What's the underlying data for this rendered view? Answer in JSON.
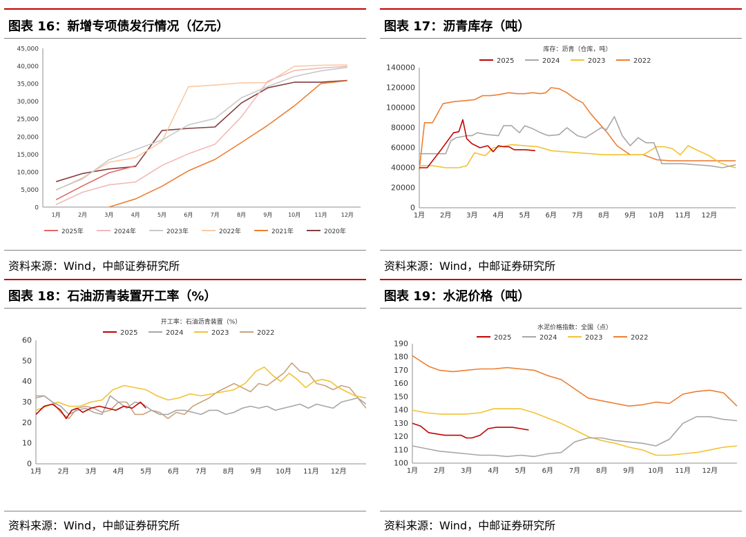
{
  "source_text": "资料来源：Wind，中邮证券研究所",
  "colors": {
    "rule_red": "#c00000"
  },
  "panels": [
    {
      "title": "图表 16：新增专项债发行情况（亿元）"
    },
    {
      "title": "图表 17：沥青库存（吨）"
    },
    {
      "title": "图表 18：石油沥青装置开工率（%）"
    },
    {
      "title": "图表 19：水泥价格（吨）"
    }
  ],
  "chart_data": [
    {
      "type": "line",
      "title": "",
      "categories": [
        "1月",
        "2月",
        "3月",
        "4月",
        "5月",
        "6月",
        "7月",
        "8月",
        "9月",
        "10月",
        "11月",
        "12月"
      ],
      "ylim": [
        0,
        45000
      ],
      "yticks": [
        "0",
        "5,000",
        "10,000",
        "15,000",
        "20,000",
        "25,000",
        "30,000",
        "35,000",
        "40,000",
        "45,000"
      ],
      "legend_position": "bottom",
      "series": [
        {
          "name": "2025年",
          "color": "#e06666",
          "values": [
            2100,
            6000,
            9700,
            11700,
            null,
            null,
            null,
            null,
            null,
            null,
            null,
            null
          ]
        },
        {
          "name": "2024年",
          "color": "#f2b8b8",
          "values": [
            700,
            4200,
            6300,
            7100,
            11800,
            15100,
            17800,
            25600,
            35700,
            38700,
            39400,
            39900
          ]
        },
        {
          "name": "2023年",
          "color": "#c8c8c8",
          "values": [
            4900,
            8000,
            13400,
            16300,
            19000,
            23300,
            25100,
            31000,
            34200,
            37000,
            38600,
            39600
          ]
        },
        {
          "name": "2022年",
          "color": "#f9c9a3",
          "values": [
            4800,
            8300,
            12700,
            14000,
            18600,
            34100,
            34600,
            35200,
            35300,
            39900,
            40200,
            40300
          ]
        },
        {
          "name": "2021年",
          "color": "#ed7d31",
          "values": [
            null,
            null,
            0,
            2300,
            5900,
            10300,
            13500,
            18300,
            23200,
            28700,
            35000,
            35800
          ]
        },
        {
          "name": "2020年",
          "color": "#843c3c",
          "values": [
            7200,
            9500,
            10800,
            11500,
            21700,
            22300,
            22700,
            29500,
            33800,
            35400,
            35400,
            35900
          ]
        }
      ]
    },
    {
      "type": "line",
      "title": "库存：沥青（仓库，吨）",
      "categories": [
        "1月",
        "2月",
        "3月",
        "4月",
        "5月",
        "6月",
        "7月",
        "8月",
        "9月",
        "10月",
        "11月",
        "12月"
      ],
      "ylim": [
        0,
        140000
      ],
      "yticks": [
        "0",
        "20000",
        "40000",
        "60000",
        "80000",
        "100000",
        "120000",
        "140000"
      ],
      "legend_position": "top",
      "series": [
        {
          "name": "2025",
          "color": "#c00000",
          "x": [
            0,
            0.3,
            0.8,
            1.3,
            1.5,
            1.65,
            1.8,
            2,
            2.3,
            2.6,
            2.8,
            3,
            3.2,
            3.4,
            3.6,
            4,
            4.4
          ],
          "values": [
            40000,
            40000,
            57000,
            75000,
            76000,
            88000,
            69000,
            64000,
            60000,
            62000,
            56000,
            62000,
            61000,
            61000,
            58000,
            58000,
            57000
          ]
        },
        {
          "name": "2024",
          "color": "#a6a6a6",
          "x": [
            0,
            0.5,
            1,
            1.2,
            1.4,
            1.8,
            2,
            2.2,
            2.6,
            3,
            3.2,
            3.5,
            3.8,
            4,
            4.3,
            4.6,
            4.9,
            5.3,
            5.6,
            6,
            6.3,
            6.6,
            6.9,
            7.1,
            7.4,
            7.7,
            8,
            8.3,
            8.6,
            8.9,
            9.2,
            9.6,
            10,
            10.5,
            11,
            11.5,
            12
          ],
          "values": [
            54000,
            54000,
            54000,
            67000,
            70000,
            72000,
            72000,
            75000,
            73000,
            72000,
            82000,
            82000,
            75000,
            82000,
            79000,
            75000,
            72000,
            73000,
            80000,
            72000,
            70000,
            75000,
            80000,
            78000,
            91000,
            72000,
            62000,
            70000,
            65000,
            65000,
            44000,
            44000,
            44000,
            43000,
            42000,
            40000,
            43000
          ]
        },
        {
          "name": "2023",
          "color": "#f1c232",
          "x": [
            0,
            0.5,
            1,
            1.5,
            1.8,
            2.1,
            2.5,
            2.8,
            3.1,
            3.5,
            4,
            4.5,
            5,
            5.5,
            6,
            6.5,
            7,
            7.5,
            8,
            8.5,
            9,
            9.3,
            9.6,
            9.9,
            10.2,
            10.5,
            11,
            11.4,
            11.7,
            12
          ],
          "values": [
            42000,
            42000,
            40000,
            40000,
            42000,
            55000,
            52000,
            60000,
            61000,
            63000,
            62000,
            61000,
            57000,
            56000,
            55000,
            54000,
            53000,
            53000,
            53000,
            53000,
            61000,
            61000,
            59000,
            53000,
            62000,
            58000,
            52000,
            45000,
            42000,
            40000
          ]
        },
        {
          "name": "2022",
          "color": "#ed7d31",
          "x": [
            0,
            0.2,
            0.5,
            0.9,
            1.3,
            1.7,
            2.1,
            2.4,
            2.7,
            3,
            3.4,
            3.7,
            4,
            4.3,
            4.6,
            4.8,
            5,
            5.3,
            5.6,
            5.9,
            6.2,
            6.5,
            6.8,
            7.1,
            7.5,
            8,
            8.5,
            9,
            9.5,
            10,
            10.5,
            11,
            11.5,
            12
          ],
          "values": [
            38000,
            85000,
            85000,
            104000,
            106000,
            107000,
            108000,
            112000,
            112000,
            113000,
            115000,
            114000,
            114000,
            115000,
            114000,
            115000,
            120000,
            119000,
            115000,
            109000,
            105000,
            94000,
            85000,
            76000,
            62000,
            53000,
            53000,
            48000,
            47000,
            47000,
            47000,
            47000,
            47000,
            47000
          ]
        }
      ]
    },
    {
      "type": "line",
      "title": "开工率：石油沥青装置（%）",
      "categories": [
        "1月",
        "2月",
        "3月",
        "4月",
        "5月",
        "6月",
        "7月",
        "8月",
        "9月",
        "10月",
        "11月",
        "12月"
      ],
      "ylim": [
        0,
        60
      ],
      "yticks": [
        "0",
        "10",
        "20",
        "30",
        "40",
        "50",
        "60"
      ],
      "legend_position": "top",
      "series": [
        {
          "name": "2025",
          "color": "#c00000",
          "x": [
            0,
            0.3,
            0.6,
            0.9,
            1.1,
            1.3,
            1.5,
            1.7,
            2,
            2.3,
            2.6,
            2.9,
            3.2,
            3.5,
            3.8,
            4
          ],
          "values": [
            24,
            28,
            29,
            26,
            22,
            26,
            27,
            25,
            27,
            28,
            27,
            26,
            28,
            27,
            30,
            27
          ]
        },
        {
          "name": "2024",
          "color": "#a6a6a6",
          "x": [
            0,
            0.3,
            0.6,
            0.9,
            1.2,
            1.5,
            1.8,
            2.1,
            2.4,
            2.7,
            3,
            3.3,
            3.6,
            3.9,
            4.2,
            4.5,
            4.8,
            5.1,
            5.4,
            5.7,
            6,
            6.3,
            6.6,
            6.9,
            7.2,
            7.5,
            7.8,
            8.1,
            8.4,
            8.7,
            9,
            9.3,
            9.6,
            9.9,
            10.2,
            10.5,
            10.8,
            11.1,
            11.4,
            11.7,
            12
          ],
          "values": [
            32,
            33,
            30,
            28,
            24,
            26,
            27,
            25,
            24,
            33,
            30,
            27,
            30,
            29,
            26,
            24,
            24,
            26,
            26,
            25,
            24,
            26,
            26,
            24,
            25,
            27,
            28,
            27,
            28,
            26,
            27,
            28,
            29,
            27,
            29,
            28,
            27,
            30,
            31,
            32,
            29
          ]
        },
        {
          "name": "2023",
          "color": "#f1c232",
          "x": [
            0,
            0.4,
            0.8,
            1.2,
            1.6,
            2,
            2.4,
            2.8,
            3.2,
            3.6,
            4,
            4.4,
            4.8,
            5.2,
            5.6,
            6,
            6.4,
            6.8,
            7.2,
            7.6,
            8,
            8.3,
            8.6,
            8.9,
            9.2,
            9.5,
            9.8,
            10.1,
            10.4,
            10.7,
            11,
            11.3,
            11.6,
            12
          ],
          "values": [
            26,
            28,
            30,
            28,
            28,
            30,
            31,
            36,
            38,
            37,
            36,
            33,
            31,
            32,
            34,
            33,
            34,
            35,
            36,
            39,
            45,
            47,
            43,
            40,
            44,
            41,
            37,
            40,
            41,
            40,
            37,
            35,
            33,
            32
          ]
        },
        {
          "name": "2022",
          "color": "#c9a27b",
          "x": [
            0,
            0.3,
            0.6,
            0.9,
            1.2,
            1.5,
            1.8,
            2.1,
            2.4,
            2.7,
            3,
            3.3,
            3.6,
            3.9,
            4.2,
            4.5,
            4.8,
            5.1,
            5.4,
            5.7,
            6,
            6.3,
            6.6,
            6.9,
            7.2,
            7.5,
            7.8,
            8.1,
            8.4,
            8.7,
            9,
            9.3,
            9.6,
            9.9,
            10.2,
            10.5,
            10.8,
            11.1,
            11.4,
            11.7,
            12
          ],
          "values": [
            33,
            33,
            30,
            25,
            22,
            27,
            28,
            27,
            25,
            26,
            30,
            30,
            24,
            24,
            26,
            25,
            22,
            25,
            24,
            28,
            30,
            32,
            35,
            37,
            39,
            37,
            35,
            39,
            38,
            41,
            44,
            49,
            45,
            44,
            39,
            38,
            36,
            38,
            37,
            32,
            27
          ]
        }
      ]
    },
    {
      "type": "line",
      "title": "水泥价格指数：全国（点）",
      "categories": [
        "1月",
        "2月",
        "3月",
        "4月",
        "5月",
        "6月",
        "7月",
        "8月",
        "9月",
        "10月",
        "11月",
        "12月"
      ],
      "ylim": [
        100,
        190
      ],
      "yticks": [
        "100",
        "110",
        "120",
        "130",
        "140",
        "150",
        "160",
        "170",
        "180",
        "190"
      ],
      "legend_position": "top",
      "series": [
        {
          "name": "2025",
          "color": "#c00000",
          "x": [
            0,
            0.3,
            0.6,
            0.9,
            1.2,
            1.5,
            1.8,
            2,
            2.2,
            2.5,
            2.8,
            3.1,
            3.4,
            3.7,
            4,
            4.3
          ],
          "values": [
            130,
            128,
            123,
            122,
            121,
            121,
            121,
            119,
            119,
            121,
            126,
            127,
            127,
            127,
            126,
            125
          ]
        },
        {
          "name": "2024",
          "color": "#a6a6a6",
          "x": [
            0,
            0.5,
            1,
            1.5,
            2,
            2.5,
            3,
            3.5,
            4,
            4.5,
            5,
            5.5,
            6,
            6.5,
            7,
            7.5,
            8,
            8.5,
            9,
            9.5,
            10,
            10.5,
            11,
            11.5,
            12
          ],
          "values": [
            113,
            111,
            109,
            108,
            107,
            106,
            106,
            105,
            106,
            105,
            107,
            108,
            116,
            119,
            119,
            117,
            116,
            115,
            113,
            118,
            130,
            135,
            135,
            133,
            132
          ]
        },
        {
          "name": "2023",
          "color": "#f1c232",
          "x": [
            0,
            0.5,
            1,
            1.5,
            2,
            2.5,
            3,
            3.5,
            4,
            4.5,
            5,
            5.5,
            6,
            6.5,
            7,
            7.5,
            8,
            8.5,
            9,
            9.5,
            10,
            10.5,
            11,
            11.5,
            12
          ],
          "values": [
            140,
            138,
            137,
            137,
            137,
            138,
            141,
            141,
            141,
            138,
            134,
            130,
            125,
            120,
            117,
            115,
            112,
            110,
            106,
            106,
            107,
            108,
            110,
            112,
            113
          ]
        },
        {
          "name": "2022",
          "color": "#ed7d31",
          "x": [
            0,
            0.3,
            0.6,
            1,
            1.5,
            2,
            2.5,
            3,
            3.5,
            4,
            4.5,
            5,
            5.5,
            6,
            6.5,
            7,
            7.5,
            8,
            8.5,
            9,
            9.5,
            10,
            10.5,
            11,
            11.5,
            12
          ],
          "values": [
            181,
            177,
            173,
            170,
            169,
            170,
            171,
            171,
            172,
            171,
            170,
            166,
            163,
            156,
            149,
            147,
            145,
            143,
            144,
            146,
            145,
            152,
            154,
            155,
            153,
            143
          ]
        }
      ]
    }
  ]
}
